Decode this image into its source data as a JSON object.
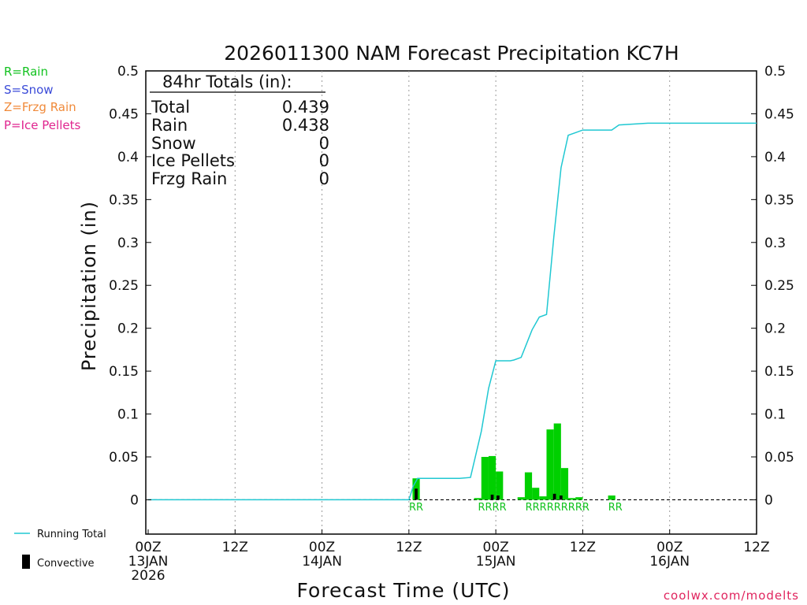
{
  "chart_data": {
    "type": "bar",
    "title": "2026011300 NAM Forecast Precipitation KC7H",
    "xlabel": "Forecast Time (UTC)",
    "ylabel": "Precipitation (in)",
    "ylim": [
      -0.04,
      0.5
    ],
    "xlim": [
      0,
      84
    ],
    "x_unit": "forecast hour",
    "y_ticks": [
      "0.5",
      "0.45",
      "0.4",
      "0.35",
      "0.3",
      "0.25",
      "0.2",
      "0.15",
      "0.1",
      "0.05",
      "0"
    ],
    "x_ticks": [
      {
        "hour": 0,
        "line1": "00Z",
        "line2": "13JAN",
        "line3": "2026"
      },
      {
        "hour": 12,
        "line1": "12Z",
        "line2": "",
        "line3": ""
      },
      {
        "hour": 24,
        "line1": "00Z",
        "line2": "14JAN",
        "line3": ""
      },
      {
        "hour": 36,
        "line1": "12Z",
        "line2": "",
        "line3": ""
      },
      {
        "hour": 48,
        "line1": "00Z",
        "line2": "15JAN",
        "line3": ""
      },
      {
        "hour": 60,
        "line1": "12Z",
        "line2": "",
        "line3": ""
      },
      {
        "hour": 72,
        "line1": "00Z",
        "line2": "16JAN",
        "line3": ""
      },
      {
        "hour": 84,
        "line1": "12Z",
        "line2": "",
        "line3": ""
      }
    ],
    "gridlines": "vertical dotted",
    "series": [
      {
        "name": "Rain",
        "color": "#00d000",
        "bars": [
          {
            "start": 36.5,
            "end": 37.5,
            "value": 0.025
          },
          {
            "start": 45,
            "end": 46,
            "value": 0.002
          },
          {
            "start": 46,
            "end": 47,
            "value": 0.05
          },
          {
            "start": 47,
            "end": 48,
            "value": 0.051
          },
          {
            "start": 48,
            "end": 49,
            "value": 0.033
          },
          {
            "start": 51,
            "end": 52,
            "value": 0.003
          },
          {
            "start": 52,
            "end": 53,
            "value": 0.032
          },
          {
            "start": 53,
            "end": 54,
            "value": 0.014
          },
          {
            "start": 54,
            "end": 55,
            "value": 0.004
          },
          {
            "start": 55,
            "end": 56,
            "value": 0.082
          },
          {
            "start": 56,
            "end": 57,
            "value": 0.089
          },
          {
            "start": 57,
            "end": 58,
            "value": 0.037
          },
          {
            "start": 58,
            "end": 59,
            "value": 0.002
          },
          {
            "start": 59,
            "end": 60,
            "value": 0.003
          },
          {
            "start": 63.5,
            "end": 64.5,
            "value": 0.005
          }
        ]
      },
      {
        "name": "Convective",
        "color": "#000000",
        "bars": [
          {
            "start": 36.8,
            "end": 37.2,
            "value": 0.013
          },
          {
            "start": 47.3,
            "end": 47.7,
            "value": 0.006
          },
          {
            "start": 48.1,
            "end": 48.5,
            "value": 0.005
          },
          {
            "start": 55.9,
            "end": 56.3,
            "value": 0.007
          },
          {
            "start": 56.8,
            "end": 57.2,
            "value": 0.005
          }
        ]
      },
      {
        "name": "Running Total",
        "color": "#20c8d2",
        "type": "line",
        "x": [
          0,
          36,
          36.6,
          37.2,
          43,
          44.5,
          46,
          47,
          48,
          49,
          50,
          50.5,
          51.5,
          53,
          54,
          55,
          56,
          57,
          58,
          59,
          60,
          63,
          64,
          65,
          69,
          84
        ],
        "y": [
          0,
          0,
          0.016,
          0.025,
          0.025,
          0.026,
          0.08,
          0.13,
          0.162,
          0.162,
          0.162,
          0.163,
          0.166,
          0.198,
          0.213,
          0.216,
          0.306,
          0.387,
          0.425,
          0.428,
          0.431,
          0.431,
          0.431,
          0.437,
          0.439,
          0.439
        ]
      }
    ],
    "zero_line": "dashed",
    "ptype_labels": [
      {
        "hour": 37,
        "text": "RR"
      },
      {
        "hour": 47.5,
        "text": "RRRR"
      },
      {
        "hour": 56.5,
        "text": "RRRRRRRRR"
      },
      {
        "hour": 64.5,
        "text": "RR"
      }
    ]
  },
  "ptype_legend": [
    {
      "text": "R=Rain",
      "color": "#12c21f"
    },
    {
      "text": "S=Snow",
      "color": "#3b4bd8"
    },
    {
      "text": "Z=Frzg Rain",
      "color": "#f08a3a"
    },
    {
      "text": "P=Ice Pellets",
      "color": "#e0258f"
    }
  ],
  "totals": {
    "header": "84hr Totals (in):",
    "rows": [
      {
        "label": "Total",
        "value": "0.439"
      },
      {
        "label": "Rain",
        "value": "0.438"
      },
      {
        "label": "Snow",
        "value": "0"
      },
      {
        "label": "Ice Pellets",
        "value": "0"
      },
      {
        "label": "Frzg Rain",
        "value": "0"
      }
    ]
  },
  "series_legend": {
    "running_total": "Running Total",
    "convective": "Convective"
  },
  "source": "coolwx.com/modelts"
}
